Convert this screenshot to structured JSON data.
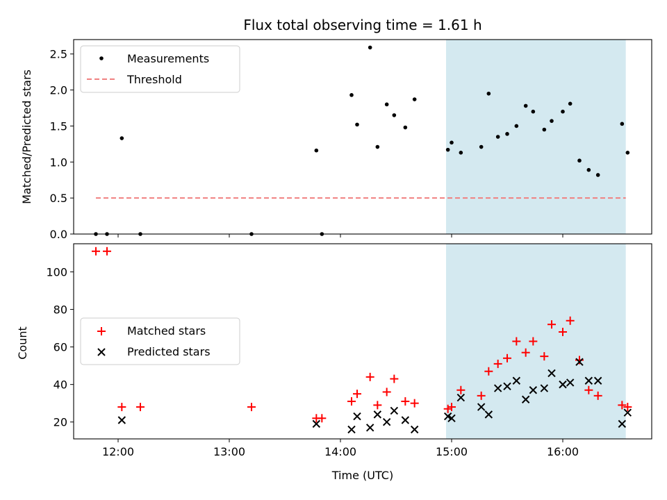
{
  "chart_data": [
    {
      "type": "scatter",
      "title": "Flux total observing time = 1.61 h",
      "ylabel": "Matched/Predicted stars",
      "xlabel": "",
      "xlim": [
        "11:36",
        "16:48"
      ],
      "ylim": [
        0,
        2.7
      ],
      "yticks": [
        "0.0",
        "0.5",
        "1.0",
        "1.5",
        "2.0",
        "2.5"
      ],
      "shaded_span": [
        "14:57",
        "16:34"
      ],
      "shade_color": "#d4e9f0",
      "legend_position": "top-left",
      "series": [
        {
          "name": "Measurements",
          "marker": "dot",
          "color": "#000000",
          "points": [
            [
              "11:48",
              0.0
            ],
            [
              "11:54",
              0.0
            ],
            [
              "12:02",
              1.33
            ],
            [
              "12:12",
              0.0
            ],
            [
              "13:12",
              0.0
            ],
            [
              "13:47",
              1.16
            ],
            [
              "13:50",
              0.0
            ],
            [
              "14:06",
              1.93
            ],
            [
              "14:09",
              1.52
            ],
            [
              "14:16",
              2.59
            ],
            [
              "14:20",
              1.21
            ],
            [
              "14:25",
              1.8
            ],
            [
              "14:29",
              1.65
            ],
            [
              "14:35",
              1.48
            ],
            [
              "14:40",
              1.87
            ],
            [
              "14:58",
              1.17
            ],
            [
              "15:00",
              1.27
            ],
            [
              "15:05",
              1.13
            ],
            [
              "15:16",
              1.21
            ],
            [
              "15:20",
              1.95
            ],
            [
              "15:25",
              1.35
            ],
            [
              "15:30",
              1.39
            ],
            [
              "15:35",
              1.5
            ],
            [
              "15:40",
              1.78
            ],
            [
              "15:44",
              1.7
            ],
            [
              "15:50",
              1.45
            ],
            [
              "15:54",
              1.57
            ],
            [
              "16:00",
              1.7
            ],
            [
              "16:04",
              1.81
            ],
            [
              "16:09",
              1.02
            ],
            [
              "16:14",
              0.89
            ],
            [
              "16:19",
              0.82
            ],
            [
              "16:32",
              1.53
            ],
            [
              "16:35",
              1.13
            ]
          ]
        },
        {
          "name": "Threshold",
          "marker": "dashed-line",
          "color": "#f08080",
          "points": [
            [
              "11:48",
              0.5
            ],
            [
              "16:34",
              0.5
            ]
          ]
        }
      ]
    },
    {
      "type": "scatter",
      "title": "",
      "ylabel": "Count",
      "xlabel": "Time (UTC)",
      "xlim": [
        "11:36",
        "16:48"
      ],
      "ylim": [
        11,
        115
      ],
      "yticks": [
        "20",
        "40",
        "60",
        "80",
        "100"
      ],
      "xticks": [
        "12:00",
        "13:00",
        "14:00",
        "15:00",
        "16:00"
      ],
      "shaded_span": [
        "14:57",
        "16:34"
      ],
      "shade_color": "#d4e9f0",
      "legend_position": "center-left",
      "series": [
        {
          "name": "Matched stars",
          "marker": "plus",
          "color": "#ff0000",
          "points": [
            [
              "11:48",
              111
            ],
            [
              "11:54",
              111
            ],
            [
              "12:02",
              28
            ],
            [
              "12:12",
              28
            ],
            [
              "13:12",
              28
            ],
            [
              "13:47",
              22
            ],
            [
              "13:50",
              22
            ],
            [
              "14:06",
              31
            ],
            [
              "14:09",
              35
            ],
            [
              "14:16",
              44
            ],
            [
              "14:20",
              29
            ],
            [
              "14:25",
              36
            ],
            [
              "14:29",
              43
            ],
            [
              "14:35",
              31
            ],
            [
              "14:40",
              30
            ],
            [
              "14:58",
              27
            ],
            [
              "15:00",
              28
            ],
            [
              "15:05",
              37
            ],
            [
              "15:16",
              34
            ],
            [
              "15:20",
              47
            ],
            [
              "15:25",
              51
            ],
            [
              "15:30",
              54
            ],
            [
              "15:35",
              63
            ],
            [
              "15:40",
              57
            ],
            [
              "15:44",
              63
            ],
            [
              "15:50",
              55
            ],
            [
              "15:54",
              72
            ],
            [
              "16:00",
              68
            ],
            [
              "16:04",
              74
            ],
            [
              "16:09",
              53
            ],
            [
              "16:14",
              37
            ],
            [
              "16:19",
              34
            ],
            [
              "16:32",
              29
            ],
            [
              "16:35",
              28
            ]
          ]
        },
        {
          "name": "Predicted stars",
          "marker": "x",
          "color": "#000000",
          "points": [
            [
              "12:02",
              21
            ],
            [
              "13:47",
              19
            ],
            [
              "14:06",
              16
            ],
            [
              "14:09",
              23
            ],
            [
              "14:16",
              17
            ],
            [
              "14:20",
              24
            ],
            [
              "14:25",
              20
            ],
            [
              "14:29",
              26
            ],
            [
              "14:35",
              21
            ],
            [
              "14:40",
              16
            ],
            [
              "14:58",
              23
            ],
            [
              "15:00",
              22
            ],
            [
              "15:05",
              33
            ],
            [
              "15:16",
              28
            ],
            [
              "15:20",
              24
            ],
            [
              "15:25",
              38
            ],
            [
              "15:30",
              39
            ],
            [
              "15:35",
              42
            ],
            [
              "15:40",
              32
            ],
            [
              "15:44",
              37
            ],
            [
              "15:50",
              38
            ],
            [
              "15:54",
              46
            ],
            [
              "16:00",
              40
            ],
            [
              "16:04",
              41
            ],
            [
              "16:09",
              52
            ],
            [
              "16:14",
              42
            ],
            [
              "16:19",
              42
            ],
            [
              "16:32",
              19
            ],
            [
              "16:35",
              25
            ]
          ]
        }
      ]
    }
  ]
}
